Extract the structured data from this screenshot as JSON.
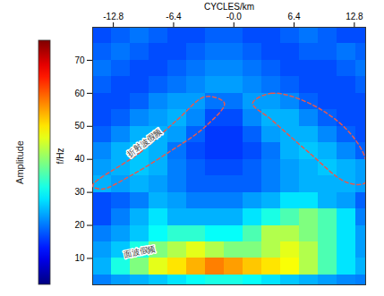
{
  "chart_data": {
    "type": "heatmap",
    "xlabel": "CYCLES/km",
    "ylabel": "f/Hz",
    "xlim": [
      -15,
      14
    ],
    "ylim": [
      2,
      80
    ],
    "xticks": [
      -12.8,
      -6.4,
      {
        "value": 0,
        "label": "-0.0"
      },
      6.4,
      12.8
    ],
    "yticks": [
      10,
      20,
      30,
      40,
      50,
      60,
      70
    ],
    "x_edges": [
      -15,
      -13,
      -11,
      -9,
      -7,
      -5,
      -3,
      -1,
      1,
      3,
      5,
      7,
      9,
      11,
      13,
      15
    ],
    "y_edges": [
      0,
      5,
      10,
      15,
      20,
      25,
      30,
      35,
      40,
      45,
      50,
      55,
      60,
      65,
      70,
      75,
      80
    ],
    "cells": [
      [
        0.25,
        0.28,
        0.3,
        0.32,
        0.35,
        0.38,
        0.4,
        0.4,
        0.38,
        0.35,
        0.32,
        0.3,
        0.28,
        0.26,
        0.25
      ],
      [
        0.3,
        0.4,
        0.5,
        0.6,
        0.65,
        0.7,
        0.75,
        0.72,
        0.68,
        0.65,
        0.62,
        0.55,
        0.45,
        0.35,
        0.3
      ],
      [
        0.28,
        0.32,
        0.4,
        0.5,
        0.55,
        0.6,
        0.55,
        0.5,
        0.5,
        0.55,
        0.6,
        0.55,
        0.45,
        0.35,
        0.28
      ],
      [
        0.25,
        0.28,
        0.32,
        0.38,
        0.42,
        0.42,
        0.38,
        0.38,
        0.45,
        0.55,
        0.55,
        0.5,
        0.45,
        0.35,
        0.28
      ],
      [
        0.2,
        0.25,
        0.3,
        0.35,
        0.3,
        0.3,
        0.3,
        0.3,
        0.35,
        0.4,
        0.45,
        0.5,
        0.45,
        0.35,
        0.25
      ],
      [
        0.2,
        0.22,
        0.25,
        0.3,
        0.28,
        0.25,
        0.25,
        0.25,
        0.28,
        0.3,
        0.35,
        0.35,
        0.3,
        0.28,
        0.22
      ],
      [
        0.3,
        0.28,
        0.3,
        0.28,
        0.25,
        0.22,
        0.22,
        0.22,
        0.22,
        0.25,
        0.28,
        0.3,
        0.3,
        0.3,
        0.28
      ],
      [
        0.28,
        0.3,
        0.32,
        0.3,
        0.25,
        0.22,
        0.2,
        0.2,
        0.22,
        0.25,
        0.28,
        0.3,
        0.32,
        0.3,
        0.28
      ],
      [
        0.26,
        0.3,
        0.32,
        0.3,
        0.24,
        0.2,
        0.18,
        0.18,
        0.2,
        0.24,
        0.3,
        0.32,
        0.3,
        0.26,
        0.22
      ],
      [
        0.22,
        0.26,
        0.3,
        0.3,
        0.28,
        0.22,
        0.18,
        0.18,
        0.22,
        0.28,
        0.3,
        0.3,
        0.26,
        0.22,
        0.2
      ],
      [
        0.2,
        0.22,
        0.26,
        0.28,
        0.3,
        0.26,
        0.2,
        0.2,
        0.26,
        0.3,
        0.3,
        0.26,
        0.22,
        0.2,
        0.2
      ],
      [
        0.2,
        0.2,
        0.22,
        0.26,
        0.28,
        0.28,
        0.24,
        0.24,
        0.28,
        0.28,
        0.26,
        0.22,
        0.2,
        0.2,
        0.2
      ],
      [
        0.22,
        0.2,
        0.2,
        0.22,
        0.24,
        0.26,
        0.28,
        0.28,
        0.26,
        0.24,
        0.22,
        0.2,
        0.2,
        0.2,
        0.22
      ],
      [
        0.24,
        0.22,
        0.2,
        0.2,
        0.22,
        0.24,
        0.26,
        0.26,
        0.24,
        0.22,
        0.2,
        0.2,
        0.2,
        0.22,
        0.24
      ],
      [
        0.22,
        0.24,
        0.22,
        0.2,
        0.2,
        0.22,
        0.24,
        0.24,
        0.22,
        0.2,
        0.2,
        0.22,
        0.22,
        0.24,
        0.22
      ],
      [
        0.2,
        0.22,
        0.24,
        0.22,
        0.2,
        0.2,
        0.22,
        0.22,
        0.2,
        0.2,
        0.22,
        0.24,
        0.22,
        0.2,
        0.2
      ]
    ],
    "colorbar": {
      "label": "Amplitude",
      "range": [
        0,
        1
      ],
      "ticks": []
    },
    "regions": [
      {
        "color": "#e8584e",
        "line_style": "dashed",
        "x": [
          -15,
          -10,
          -6,
          -3,
          -1,
          -3,
          -7,
          -11,
          -14
        ],
        "y": [
          32,
          42,
          52,
          59,
          57,
          50,
          42,
          35,
          31
        ]
      },
      {
        "color": "#e8584e",
        "line_style": "dashed",
        "x": [
          2,
          4,
          8,
          12,
          14,
          14,
          12,
          8,
          4
        ],
        "y": [
          57,
          60,
          57,
          49,
          40,
          33,
          33,
          42,
          52
        ]
      }
    ],
    "annotations": [
      {
        "text": "折射波假频",
        "x": -9.5,
        "y": 45
      },
      {
        "text": "面波假频",
        "x": -10,
        "y": 12
      }
    ]
  }
}
